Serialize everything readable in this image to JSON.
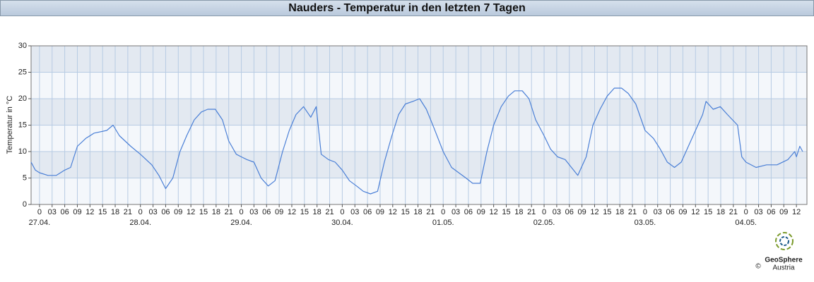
{
  "chart_data": {
    "type": "line",
    "title": "Nauders - Temperatur in den letzten 7 Tagen",
    "y_label": "Temperatur in °C",
    "logo": {
      "name": "GeoSphere",
      "sub": "Austria",
      "copyright": "©"
    },
    "x": [
      -2,
      -1,
      0,
      2,
      4,
      6,
      7.4,
      9,
      11,
      13,
      16,
      17.5,
      19,
      21.7,
      24,
      26.7,
      28.4,
      30,
      31.7,
      33.4,
      35,
      36.8,
      38.5,
      40,
      41.8,
      43.5,
      45,
      46.8,
      48,
      49.3,
      51,
      52.7,
      54.4,
      56,
      57.8,
      59.4,
      61,
      62.8,
      64.5,
      65.8,
      67,
      68.7,
      70.3,
      72,
      73.7,
      75.4,
      77,
      78.7,
      80.4,
      82,
      83.8,
      85.4,
      87,
      88.8,
      90.4,
      92,
      93.8,
      96,
      98,
      99.7,
      101.4,
      103,
      104.8,
      106.4,
      108,
      109.8,
      111.5,
      113,
      114.8,
      116.4,
      118,
      120,
      121.5,
      123.2,
      125,
      126.5,
      128,
      130,
      131.6,
      133.3,
      135,
      136.7,
      138.4,
      140,
      141.8,
      144,
      146,
      147.6,
      149.3,
      151,
      152.6,
      154.3,
      156,
      157.7,
      158.5,
      160.2,
      161.9,
      163.6,
      166,
      167,
      168,
      170.4,
      172.9,
      175.4,
      178,
      179.6,
      180,
      180.8,
      181.5
    ],
    "series": [
      {
        "color": "#4a7fd6",
        "values": [
          8,
          6.5,
          6,
          5.5,
          5.5,
          6.5,
          7,
          11,
          12.5,
          13.5,
          14,
          15,
          13,
          11,
          9.5,
          7.5,
          5.5,
          3,
          5,
          10,
          13,
          16,
          17.5,
          18,
          18,
          16,
          12,
          9.5,
          9,
          8.5,
          8,
          5,
          3.5,
          4.5,
          10,
          14,
          17,
          18.5,
          16.5,
          18.5,
          9.5,
          8.5,
          8,
          6.5,
          4.5,
          3.5,
          2.5,
          2,
          2.5,
          8,
          13,
          17,
          19,
          19.5,
          20,
          18,
          14.5,
          10,
          7,
          6,
          5,
          4,
          4,
          10,
          15,
          18.5,
          20.5,
          21.5,
          21.5,
          20,
          16,
          13,
          10.5,
          9,
          8.5,
          7,
          5.5,
          9,
          15,
          18,
          20.5,
          22,
          22,
          21,
          19,
          14,
          12.5,
          10.5,
          8,
          7,
          8,
          11,
          14,
          17,
          19.5,
          18,
          18.5,
          17,
          15,
          9,
          8,
          7,
          7.5,
          7.5,
          8.5,
          10,
          9,
          11,
          10
        ]
      }
    ],
    "xlim": [
      -2,
      182.5
    ],
    "ylim": [
      0,
      30
    ],
    "yticks": [
      0,
      5,
      10,
      15,
      20,
      25,
      30
    ],
    "xticks": [
      {
        "value": 0,
        "label": "0"
      },
      {
        "value": 3,
        "label": "03"
      },
      {
        "value": 6,
        "label": "06"
      },
      {
        "value": 9,
        "label": "09"
      },
      {
        "value": 12,
        "label": "12"
      },
      {
        "value": 15,
        "label": "15"
      },
      {
        "value": 18,
        "label": "18"
      },
      {
        "value": 21,
        "label": "21"
      },
      {
        "value": 24,
        "label": "0"
      },
      {
        "value": 27,
        "label": "03"
      },
      {
        "value": 30,
        "label": "06"
      },
      {
        "value": 33,
        "label": "09"
      },
      {
        "value": 36,
        "label": "12"
      },
      {
        "value": 39,
        "label": "15"
      },
      {
        "value": 42,
        "label": "18"
      },
      {
        "value": 45,
        "label": "21"
      },
      {
        "value": 48,
        "label": "0"
      },
      {
        "value": 51,
        "label": "03"
      },
      {
        "value": 54,
        "label": "06"
      },
      {
        "value": 57,
        "label": "09"
      },
      {
        "value": 60,
        "label": "12"
      },
      {
        "value": 63,
        "label": "15"
      },
      {
        "value": 66,
        "label": "18"
      },
      {
        "value": 69,
        "label": "21"
      },
      {
        "value": 72,
        "label": "0"
      },
      {
        "value": 75,
        "label": "03"
      },
      {
        "value": 78,
        "label": "06"
      },
      {
        "value": 81,
        "label": "09"
      },
      {
        "value": 84,
        "label": "12"
      },
      {
        "value": 87,
        "label": "15"
      },
      {
        "value": 90,
        "label": "18"
      },
      {
        "value": 93,
        "label": "21"
      },
      {
        "value": 96,
        "label": "0"
      },
      {
        "value": 99,
        "label": "03"
      },
      {
        "value": 102,
        "label": "06"
      },
      {
        "value": 105,
        "label": "09"
      },
      {
        "value": 108,
        "label": "12"
      },
      {
        "value": 111,
        "label": "15"
      },
      {
        "value": 114,
        "label": "18"
      },
      {
        "value": 117,
        "label": "21"
      },
      {
        "value": 120,
        "label": "0"
      },
      {
        "value": 123,
        "label": "03"
      },
      {
        "value": 126,
        "label": "06"
      },
      {
        "value": 129,
        "label": "09"
      },
      {
        "value": 132,
        "label": "12"
      },
      {
        "value": 135,
        "label": "15"
      },
      {
        "value": 138,
        "label": "18"
      },
      {
        "value": 141,
        "label": "21"
      },
      {
        "value": 144,
        "label": "0"
      },
      {
        "value": 147,
        "label": "03"
      },
      {
        "value": 150,
        "label": "06"
      },
      {
        "value": 153,
        "label": "09"
      },
      {
        "value": 156,
        "label": "12"
      },
      {
        "value": 159,
        "label": "15"
      },
      {
        "value": 162,
        "label": "18"
      },
      {
        "value": 165,
        "label": "21"
      },
      {
        "value": 168,
        "label": "0"
      },
      {
        "value": 171,
        "label": "03"
      },
      {
        "value": 174,
        "label": "06"
      },
      {
        "value": 177,
        "label": "09"
      },
      {
        "value": 180,
        "label": "12"
      }
    ],
    "date_labels": [
      {
        "value": 0,
        "label": "27.04."
      },
      {
        "value": 24,
        "label": "28.04."
      },
      {
        "value": 48,
        "label": "29.04."
      },
      {
        "value": 72,
        "label": "30.04."
      },
      {
        "value": 96,
        "label": "01.05."
      },
      {
        "value": 120,
        "label": "02.05."
      },
      {
        "value": 144,
        "label": "03.05."
      },
      {
        "value": 168,
        "label": "04.05."
      }
    ],
    "grid": true
  }
}
